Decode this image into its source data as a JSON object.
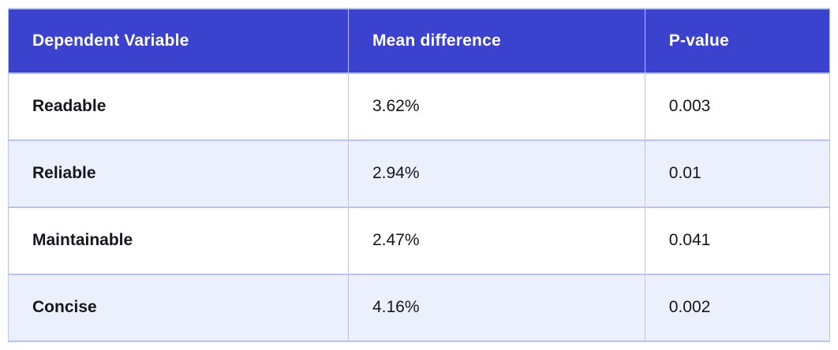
{
  "table": {
    "columns": [
      {
        "key": "variable",
        "label": "Dependent Variable"
      },
      {
        "key": "mean_difference",
        "label": "Mean difference"
      },
      {
        "key": "p_value",
        "label": "P-value"
      }
    ],
    "rows": [
      {
        "variable": "Readable",
        "mean_difference": "3.62%",
        "p_value": "0.003"
      },
      {
        "variable": "Reliable",
        "mean_difference": "2.94%",
        "p_value": "0.01"
      },
      {
        "variable": "Maintainable",
        "mean_difference": "2.47%",
        "p_value": "0.041"
      },
      {
        "variable": "Concise",
        "mean_difference": "4.16%",
        "p_value": "0.002"
      }
    ]
  },
  "colors": {
    "header_bg": "#3b42ce",
    "header_text": "#ffffff",
    "body_text": "#16161e",
    "row_bg": "#ffffff",
    "row_alt_bg": "#ebf0fc",
    "grid_border": "#b9c5f1",
    "page_bg": "#ffffff"
  }
}
